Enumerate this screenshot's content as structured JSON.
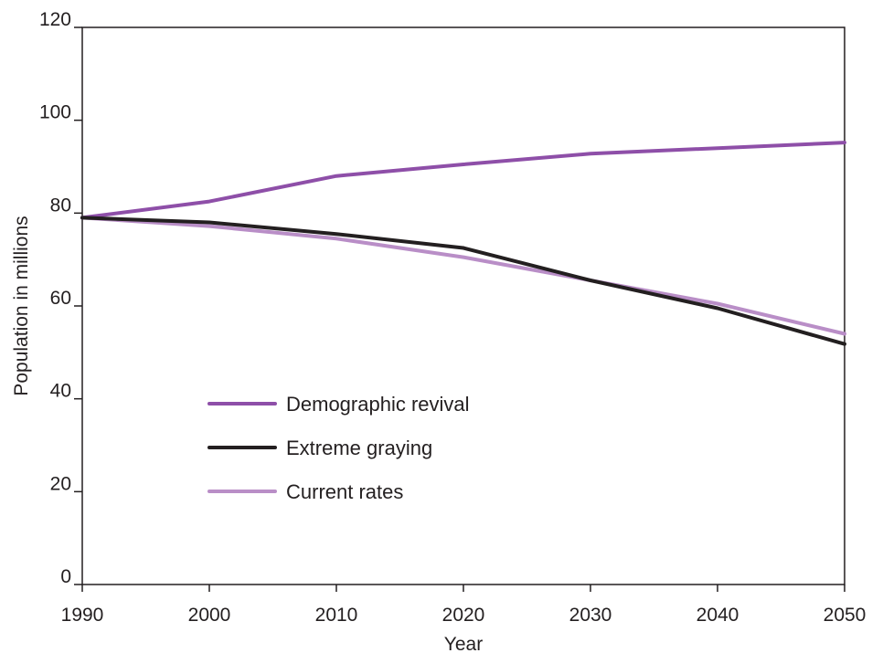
{
  "chart_data": {
    "type": "line",
    "title": "",
    "xlabel": "Year",
    "ylabel": "Population in millions",
    "x": [
      1990,
      2000,
      2010,
      2020,
      2030,
      2040,
      2050
    ],
    "xticks": [
      "1990",
      "2000",
      "2010",
      "2020",
      "2030",
      "2040",
      "2050"
    ],
    "yticks": [
      "0",
      "20",
      "40",
      "60",
      "80",
      "100",
      "120"
    ],
    "xlim": [
      1990,
      2050
    ],
    "ylim": [
      0,
      120
    ],
    "grid": false,
    "legend_position": "lower-center",
    "series": [
      {
        "name": "Demographic revival",
        "color": "#8e4fa8",
        "values": [
          79,
          82.5,
          88,
          90.5,
          92.8,
          94,
          95.2
        ]
      },
      {
        "name": "Extreme graying",
        "color": "#231f20",
        "values": [
          79,
          78,
          75.5,
          72.5,
          65.5,
          59.5,
          51.8
        ]
      },
      {
        "name": "Current rates",
        "color": "#b98ec7",
        "values": [
          79,
          77.2,
          74.5,
          70.5,
          65.5,
          60.5,
          54
        ]
      }
    ]
  }
}
